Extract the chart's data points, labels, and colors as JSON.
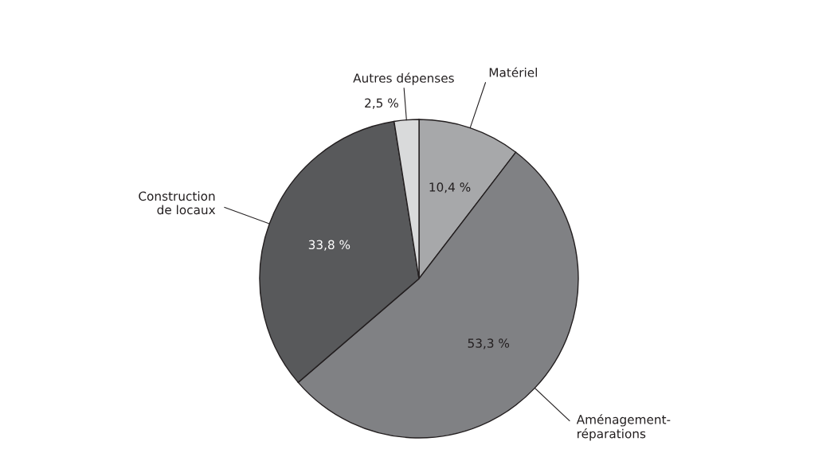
{
  "chart_data": {
    "type": "pie",
    "categories": [
      "Matériel",
      "Aménagement-\nréparations",
      "Construction\nde locaux",
      "Autres dépenses"
    ],
    "values": [
      10.4,
      53.3,
      33.8,
      2.5
    ],
    "colors": [
      "#a7a8aa",
      "#808184",
      "#58595b",
      "#d9dadb"
    ],
    "value_labels": [
      "10,4 %",
      "53,3 %",
      "33,8 %",
      "2,5 %"
    ],
    "legend": false
  }
}
